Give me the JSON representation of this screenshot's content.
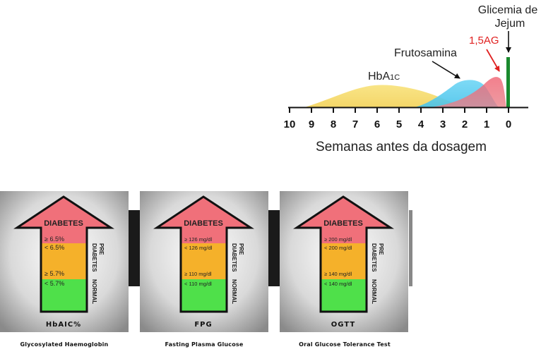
{
  "chart": {
    "xlabel": "Semanas antes da dosagem",
    "ticks": [
      "10",
      "9",
      "8",
      "7",
      "6",
      "5",
      "4",
      "3",
      "2",
      "1",
      "0"
    ],
    "labels": {
      "hba1c_main": "HbA",
      "hba1c_sub": "1C",
      "frutosamina": "Frutosamina",
      "ag": "1,5AG",
      "glicemia_line1": "Glicemia de",
      "glicemia_line2": "Jejum"
    },
    "colors": {
      "hba1c": "#f6dc6a",
      "frutosamina": "#5ccdf0",
      "ag": "#ee5a6a",
      "glicemia": "#1a8a2e",
      "ag_label": "#e02020"
    }
  },
  "chart_data": {
    "type": "area",
    "xlabel": "Semanas antes da dosagem",
    "x_range": [
      10,
      0
    ],
    "x_ticks": [
      10,
      9,
      8,
      7,
      6,
      5,
      4,
      3,
      2,
      1,
      0
    ],
    "series": [
      {
        "name": "HbA1C",
        "x": [
          9.3,
          8,
          7,
          6,
          5,
          4,
          3,
          2.5
        ],
        "y": [
          0,
          0.38,
          0.72,
          1,
          0.9,
          0.65,
          0.3,
          0.05
        ]
      },
      {
        "name": "Frutosamina",
        "x": [
          4,
          3,
          2.4,
          2,
          1.5,
          1,
          0.6
        ],
        "y": [
          0,
          0.32,
          0.9,
          1,
          0.85,
          0.35,
          0
        ]
      },
      {
        "name": "1,5AG",
        "x": [
          3.3,
          2,
          1,
          0.7,
          0.2,
          0
        ],
        "y": [
          0,
          0.18,
          0.78,
          1,
          0.75,
          0
        ]
      },
      {
        "name": "Glicemia de Jejum",
        "x": [
          0,
          0
        ],
        "y": [
          0,
          1
        ]
      }
    ]
  },
  "panels": [
    {
      "header": "DIABETES",
      "val_high": "≥ 6.5%",
      "val_mid_top": "< 6.5%",
      "val_mid_bottom": "≥ 5.7%",
      "val_low": "< 5.7%",
      "side_pre_1": "PRE",
      "side_pre_2": "DIABETES",
      "side_normal": "NORMAL",
      "name": "HbAIC%",
      "caption": "Glycosylated Haemoglobin"
    },
    {
      "header": "DIABETES",
      "val_high": "≥ 126 mg/dl",
      "val_mid_top": "< 126 mg/dl",
      "val_mid_bottom": "≥ 110 mg/dl",
      "val_low": "< 110 mg/dl",
      "side_pre_1": "PRE",
      "side_pre_2": "DIABETES",
      "side_normal": "NORMAL",
      "name": "FPG",
      "caption": "Fasting Plasma Glucose"
    },
    {
      "header": "DIABETES",
      "val_high": "≥ 200 mg/dl",
      "val_mid_top": "< 200 mg/dl",
      "val_mid_bottom": "≥ 140 mg/dl",
      "val_low": "< 140 mg/dl",
      "side_pre_1": "PRE",
      "side_pre_2": "DIABETES",
      "side_normal": "NORMAL",
      "name": "OGTT",
      "caption": "Oral Glucose Tolerance Test"
    }
  ]
}
